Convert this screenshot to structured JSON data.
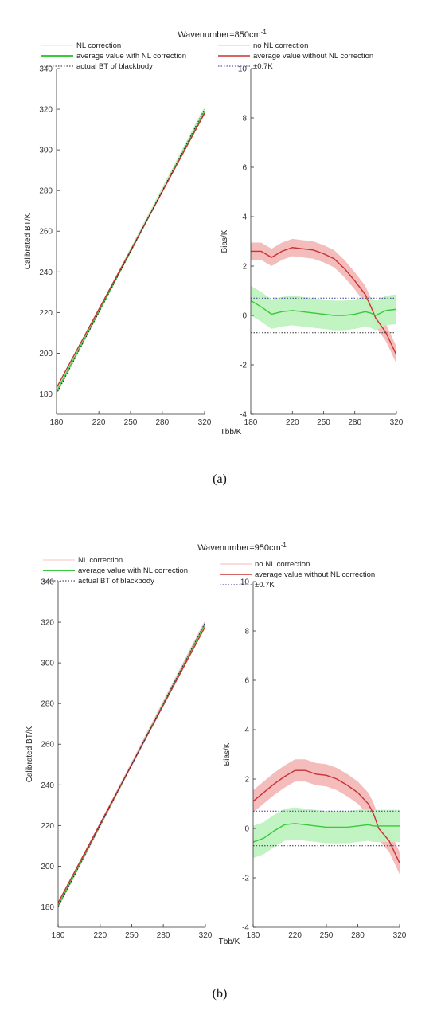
{
  "chart_data": [
    {
      "type": "line",
      "panel": "a-left",
      "title": "Wavenumber=850cm",
      "title_superscript": "-1",
      "xlabel": "",
      "ylabel": "Calibrated BT/K",
      "xlim": [
        180,
        320
      ],
      "ylim": [
        170,
        340
      ],
      "xticks": [
        "180",
        "220",
        "250",
        "280",
        "320"
      ],
      "yticks": [
        "180",
        "200",
        "220",
        "240",
        "260",
        "280",
        "300",
        "320",
        "340"
      ],
      "legend": [
        "NL correction",
        "average value with NL correction",
        "actual BT of blackbody"
      ],
      "legend_position": "top",
      "series": [
        {
          "name": "NL correction",
          "x": [
            180,
            320
          ],
          "y": [
            181,
            320
          ],
          "color": "#c6f0c6"
        },
        {
          "name": "average value with NL correction",
          "x": [
            180,
            320
          ],
          "y": [
            181,
            319
          ],
          "color": "#3cc83c"
        },
        {
          "name": "",
          "x": [
            180,
            320
          ],
          "y": [
            183,
            318
          ],
          "color": "#c83232"
        },
        {
          "name": "actual BT of blackbody",
          "x": [
            180,
            320
          ],
          "y": [
            180,
            320
          ],
          "color": "#222222"
        }
      ]
    },
    {
      "type": "line",
      "panel": "a-right",
      "xlabel": "Tbb/K",
      "ylabel": "Bias/K",
      "xlim": [
        180,
        320
      ],
      "ylim": [
        -4,
        10
      ],
      "xticks": [
        "180",
        "220",
        "250",
        "280",
        "320"
      ],
      "yticks": [
        "-4",
        "-2",
        "0",
        "2",
        "4",
        "6",
        "8",
        "10"
      ],
      "legend": [
        "no NL correction",
        "average value without NL correction",
        "±0.7K"
      ],
      "legend_position": "top",
      "x": [
        180,
        190,
        200,
        210,
        220,
        230,
        240,
        250,
        260,
        270,
        280,
        290,
        295,
        300,
        310,
        320
      ],
      "series": [
        {
          "name": "average value without NL correction",
          "color": "#c83232",
          "y": [
            2.6,
            2.6,
            2.35,
            2.6,
            2.75,
            2.7,
            2.65,
            2.5,
            2.3,
            1.9,
            1.4,
            0.85,
            0.4,
            -0.1,
            -0.7,
            -1.6
          ],
          "band": 0.35,
          "band_color": "#f4b8b8"
        },
        {
          "name": "average value with NL correction",
          "color": "#3cc83c",
          "y": [
            0.6,
            0.35,
            0.05,
            0.15,
            0.2,
            0.15,
            0.1,
            0.05,
            0.0,
            0.0,
            0.05,
            0.15,
            0.1,
            0.0,
            0.2,
            0.25
          ],
          "band": 0.6,
          "band_color": "#bff2bf"
        },
        {
          "name": "±0.7K",
          "color": "#333399",
          "dotted": true,
          "x": [
            180,
            320
          ],
          "y": [
            0.7,
            0.7
          ]
        },
        {
          "name": "",
          "color": "#333333",
          "dotted": true,
          "x": [
            180,
            320
          ],
          "y": [
            -0.7,
            -0.7
          ]
        }
      ]
    },
    {
      "type": "line",
      "panel": "b-left",
      "title": "Wavenumber=950cm",
      "title_superscript": "-1",
      "xlabel": "",
      "ylabel": "Calibrated BT/K",
      "xlim": [
        180,
        320
      ],
      "ylim": [
        170,
        340
      ],
      "xticks": [
        "180",
        "220",
        "250",
        "280",
        "320"
      ],
      "yticks": [
        "180",
        "200",
        "220",
        "240",
        "260",
        "280",
        "300",
        "320",
        "340"
      ],
      "legend": [
        "NL correction",
        "average value with NL correction",
        "actual BT of blackbody"
      ],
      "legend_position": "top",
      "series": [
        {
          "name": "NL correction",
          "x": [
            180,
            320
          ],
          "y": [
            180.5,
            320
          ],
          "color": "#f4c6c6"
        },
        {
          "name": "average value with NL correction",
          "x": [
            180,
            320
          ],
          "y": [
            180.5,
            319.5
          ],
          "color": "#3cc83c"
        },
        {
          "name": "",
          "x": [
            180,
            320
          ],
          "y": [
            182,
            318
          ],
          "color": "#c83232"
        },
        {
          "name": "actual BT of blackbody",
          "x": [
            180,
            320
          ],
          "y": [
            180,
            320
          ],
          "color": "#222255"
        }
      ]
    },
    {
      "type": "line",
      "panel": "b-right",
      "xlabel": "Tbb/K",
      "ylabel": "Bias/K",
      "xlim": [
        180,
        320
      ],
      "ylim": [
        -4,
        10
      ],
      "xticks": [
        "180",
        "220",
        "250",
        "280",
        "320"
      ],
      "yticks": [
        "-4",
        "-2",
        "0",
        "2",
        "4",
        "6",
        "8",
        "10"
      ],
      "legend": [
        "no NL correction",
        "average value without NL correction",
        "±0.7K"
      ],
      "legend_position": "top",
      "x": [
        180,
        190,
        200,
        210,
        220,
        230,
        240,
        250,
        260,
        270,
        280,
        290,
        295,
        300,
        310,
        320
      ],
      "series": [
        {
          "name": "average value without NL correction",
          "color": "#c83232",
          "y": [
            1.1,
            1.45,
            1.8,
            2.1,
            2.35,
            2.35,
            2.2,
            2.15,
            2.0,
            1.75,
            1.45,
            1.0,
            0.6,
            0.0,
            -0.5,
            -1.4
          ],
          "band": 0.45,
          "band_color": "#f4b8b8"
        },
        {
          "name": "average value with NL correction",
          "color": "#3cc83c",
          "y": [
            -0.55,
            -0.4,
            -0.1,
            0.15,
            0.2,
            0.15,
            0.1,
            0.05,
            0.05,
            0.05,
            0.1,
            0.15,
            0.1,
            0.1,
            0.1,
            0.1
          ],
          "band": 0.65,
          "band_color": "#bff2bf"
        },
        {
          "name": "±0.7K",
          "color": "#333399",
          "dotted": true,
          "x": [
            180,
            320
          ],
          "y": [
            0.7,
            0.7
          ]
        },
        {
          "name": "",
          "color": "#333333",
          "dotted": true,
          "x": [
            180,
            320
          ],
          "y": [
            -0.7,
            -0.7
          ]
        }
      ]
    }
  ],
  "captions": [
    "(a)",
    "(b)"
  ]
}
